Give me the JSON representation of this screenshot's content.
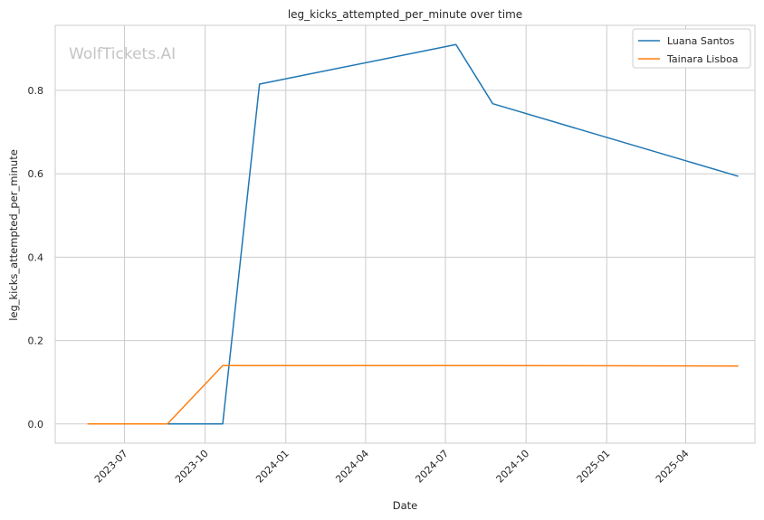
{
  "chart_data": {
    "type": "line",
    "title": "leg_kicks_attempted_per_minute over time",
    "xlabel": "Date",
    "ylabel": "leg_kicks_attempted_per_minute",
    "watermark": "WolfTickets.AI",
    "x_ticks": [
      "2023-07",
      "2023-10",
      "2024-01",
      "2024-04",
      "2024-07",
      "2024-10",
      "2025-01",
      "2025-04"
    ],
    "y_ticks": [
      "0.0",
      "0.2",
      "0.4",
      "0.6",
      "0.8"
    ],
    "ylim": [
      -0.046,
      0.956
    ],
    "xlim": [
      "2023-04-13",
      "2025-06-19"
    ],
    "grid": true,
    "legend_position": "top-right",
    "series": [
      {
        "name": "Luana Santos",
        "color": "#1f77b4",
        "x": [
          "2023-05-20",
          "2023-08-19",
          "2023-10-21",
          "2023-12-02",
          "2024-07-13",
          "2024-08-24",
          "2025-05-31"
        ],
        "y": [
          0.0,
          0.0,
          0.0,
          0.815,
          0.91,
          0.768,
          0.594
        ]
      },
      {
        "name": "Tainara Lisboa",
        "color": "#ff7f0e",
        "x": [
          "2023-05-20",
          "2023-08-19",
          "2023-10-21",
          "2023-12-02",
          "2024-07-13",
          "2024-08-24",
          "2025-05-31"
        ],
        "y": [
          0.0,
          0.0,
          0.14,
          0.14,
          0.14,
          0.14,
          0.139
        ]
      }
    ]
  }
}
